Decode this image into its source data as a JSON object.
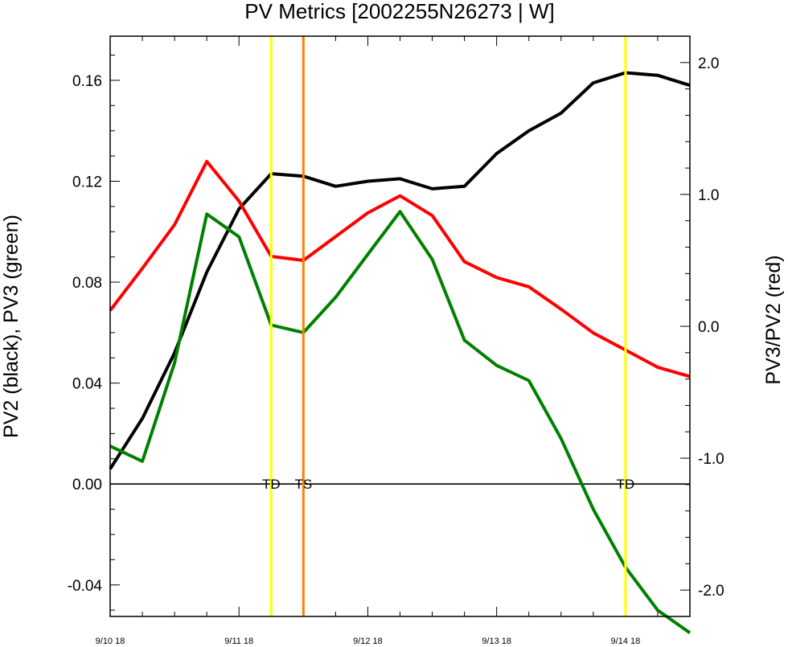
{
  "chart_data": {
    "type": "line",
    "title": "PV Metrics [2002255N26273 | W]",
    "ylabel_left": "PV2 (black), PV3 (green)",
    "ylabel_right": "PV3/PV2 (red)",
    "x_ticks": [
      "9/10 18",
      "9/11 18",
      "9/12 18",
      "9/13 18",
      "9/14 18"
    ],
    "xlim_hours": [
      0,
      108
    ],
    "ylim_left": [
      -0.0525,
      0.1775
    ],
    "ylim_right": [
      -2.2,
      2.2
    ],
    "yticks_left": [
      "0.16",
      "0.12",
      "0.08",
      "0.04",
      "0.00",
      "-0.04"
    ],
    "yticks_right": [
      "2.0",
      "1.0",
      "0.0",
      "-1.0",
      "-2.0"
    ],
    "x_hours": [
      0,
      6,
      12,
      18,
      24,
      30,
      36,
      42,
      48,
      54,
      60,
      66,
      72,
      78,
      84,
      90,
      96,
      102,
      108
    ],
    "series": [
      {
        "name": "PV2",
        "color": "#000000",
        "axis": "left",
        "values": [
          0.006,
          0.026,
          0.052,
          0.084,
          0.109,
          0.123,
          0.122,
          0.118,
          0.12,
          0.121,
          0.117,
          0.118,
          0.131,
          0.14,
          0.147,
          0.159,
          0.163,
          0.162,
          0.158
        ]
      },
      {
        "name": "PV3",
        "color": "#008000",
        "axis": "left",
        "values": [
          0.015,
          0.009,
          0.048,
          0.107,
          0.098,
          0.063,
          0.06,
          0.074,
          0.091,
          0.108,
          0.089,
          0.057,
          0.047,
          0.041,
          0.018,
          -0.01,
          -0.033,
          -0.05,
          -0.059
        ]
      },
      {
        "name": "PV3/PV2",
        "color": "#ff0000",
        "axis": "right",
        "values": [
          0.12,
          0.44,
          0.77,
          1.25,
          0.95,
          0.53,
          0.5,
          0.68,
          0.86,
          0.99,
          0.84,
          0.49,
          0.37,
          0.3,
          0.13,
          -0.05,
          -0.18,
          -0.31,
          -0.38
        ]
      }
    ],
    "markers": [
      {
        "label": "TD",
        "hour": 30,
        "color": "#ffff00"
      },
      {
        "label": "TS",
        "hour": 36,
        "color": "#ff8000"
      },
      {
        "label": "TD",
        "hour": 96,
        "color": "#ffff00"
      }
    ],
    "zero_line": 0.0
  }
}
